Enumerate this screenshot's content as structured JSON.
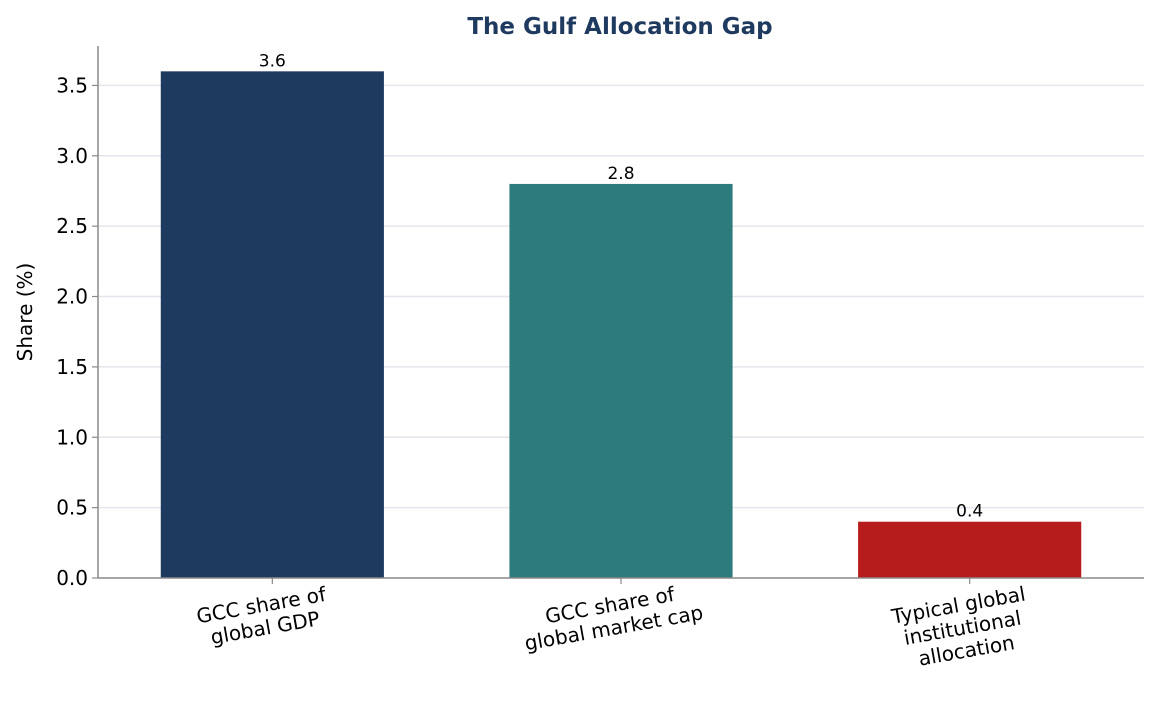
{
  "chart_data": {
    "type": "bar",
    "title": "The Gulf Allocation Gap",
    "xlabel": "",
    "ylabel": "Share (%)",
    "ylim": [
      0,
      3.78
    ],
    "yticks": [
      "0.0",
      "0.5",
      "1.0",
      "1.5",
      "2.0",
      "2.5",
      "3.0",
      "3.5"
    ],
    "grid": "horizontal",
    "categories": [
      "GCC share of\nglobal GDP",
      "GCC share of\nglobal market cap",
      "Typical global\ninstitutional\nallocation"
    ],
    "values": [
      3.6,
      2.8,
      0.4
    ],
    "data_labels": [
      "3.6",
      "2.8",
      "0.4"
    ],
    "colors": [
      "#1f3a5f",
      "#2e7b7b",
      "#b71c1c"
    ],
    "title_color": "#1f3a5f"
  }
}
